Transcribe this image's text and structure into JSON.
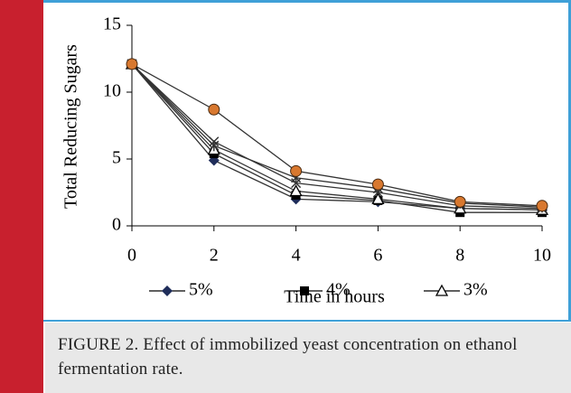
{
  "chart_data": {
    "type": "line",
    "x_label": "Time in hours",
    "y_label": "Total Reducing Sugars",
    "x": [
      0,
      2,
      4,
      6,
      8,
      10
    ],
    "series": [
      {
        "name": "5%",
        "color": "#1f2d5a",
        "marker": "diamond",
        "values": [
          12.1,
          4.9,
          2.0,
          1.8,
          1.3,
          1.2
        ]
      },
      {
        "name": "4%",
        "color": "#000000",
        "marker": "square",
        "values": [
          12.1,
          5.4,
          2.3,
          1.9,
          1.0,
          1.0
        ]
      },
      {
        "name": "3%",
        "color": "#000000",
        "marker": "triangle",
        "values": [
          12.1,
          5.7,
          2.6,
          2.0,
          1.3,
          1.2
        ]
      },
      {
        "color": "#333333",
        "marker": "x",
        "values": [
          12.1,
          6.3,
          3.2,
          2.5,
          1.5,
          1.3
        ]
      },
      {
        "color": "#333333",
        "marker": "star",
        "values": [
          12.1,
          6.0,
          3.6,
          2.8,
          1.7,
          1.4
        ]
      },
      {
        "color": "#d8782f",
        "marker": "circle",
        "values": [
          12.1,
          8.7,
          4.1,
          3.1,
          1.8,
          1.5
        ]
      }
    ],
    "xlim": [
      0,
      10
    ],
    "xticks": [
      0,
      2,
      4,
      6,
      8,
      10
    ],
    "ylim": [
      0,
      15
    ],
    "yticks": [
      0,
      5,
      10,
      15
    ]
  },
  "caption": "FIGURE 2. Effect of immobilized yeast concentration on ethanol fermentation rate."
}
